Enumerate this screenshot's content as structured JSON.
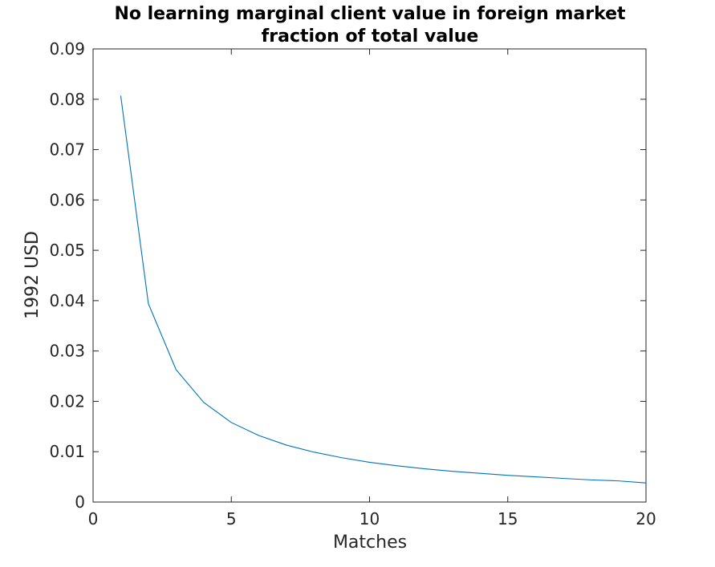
{
  "chart_data": {
    "type": "line",
    "title": [
      "No learning marginal client value in foreign market",
      "fraction of total value"
    ],
    "xlabel": "Matches",
    "ylabel": "1992 USD",
    "xlim": [
      0,
      20
    ],
    "ylim": [
      0,
      0.09
    ],
    "xticks": [
      0,
      5,
      10,
      15,
      20
    ],
    "xtick_labels": [
      "0",
      "5",
      "10",
      "15",
      "20"
    ],
    "yticks": [
      0,
      0.01,
      0.02,
      0.03,
      0.04,
      0.05,
      0.06,
      0.07,
      0.08,
      0.09
    ],
    "ytick_labels": [
      "0",
      "0.01",
      "0.02",
      "0.03",
      "0.04",
      "0.05",
      "0.06",
      "0.07",
      "0.08",
      "0.09"
    ],
    "grid": false,
    "box": true,
    "series": [
      {
        "color": "#0072BD",
        "x": [
          1,
          2,
          3,
          4,
          5,
          6,
          7,
          8,
          9,
          10,
          11,
          12,
          13,
          14,
          15,
          16,
          17,
          18,
          19,
          20
        ],
        "y": [
          0.0807,
          0.0394,
          0.0263,
          0.0198,
          0.0158,
          0.0132,
          0.0113,
          0.0099,
          0.0088,
          0.0079,
          0.0072,
          0.0066,
          0.0061,
          0.0057,
          0.0053,
          0.005,
          0.0047,
          0.0044,
          0.0042,
          0.0038
        ]
      }
    ]
  },
  "colors": {
    "axes": "#262626",
    "title": "#000000",
    "background": "#ffffff"
  }
}
